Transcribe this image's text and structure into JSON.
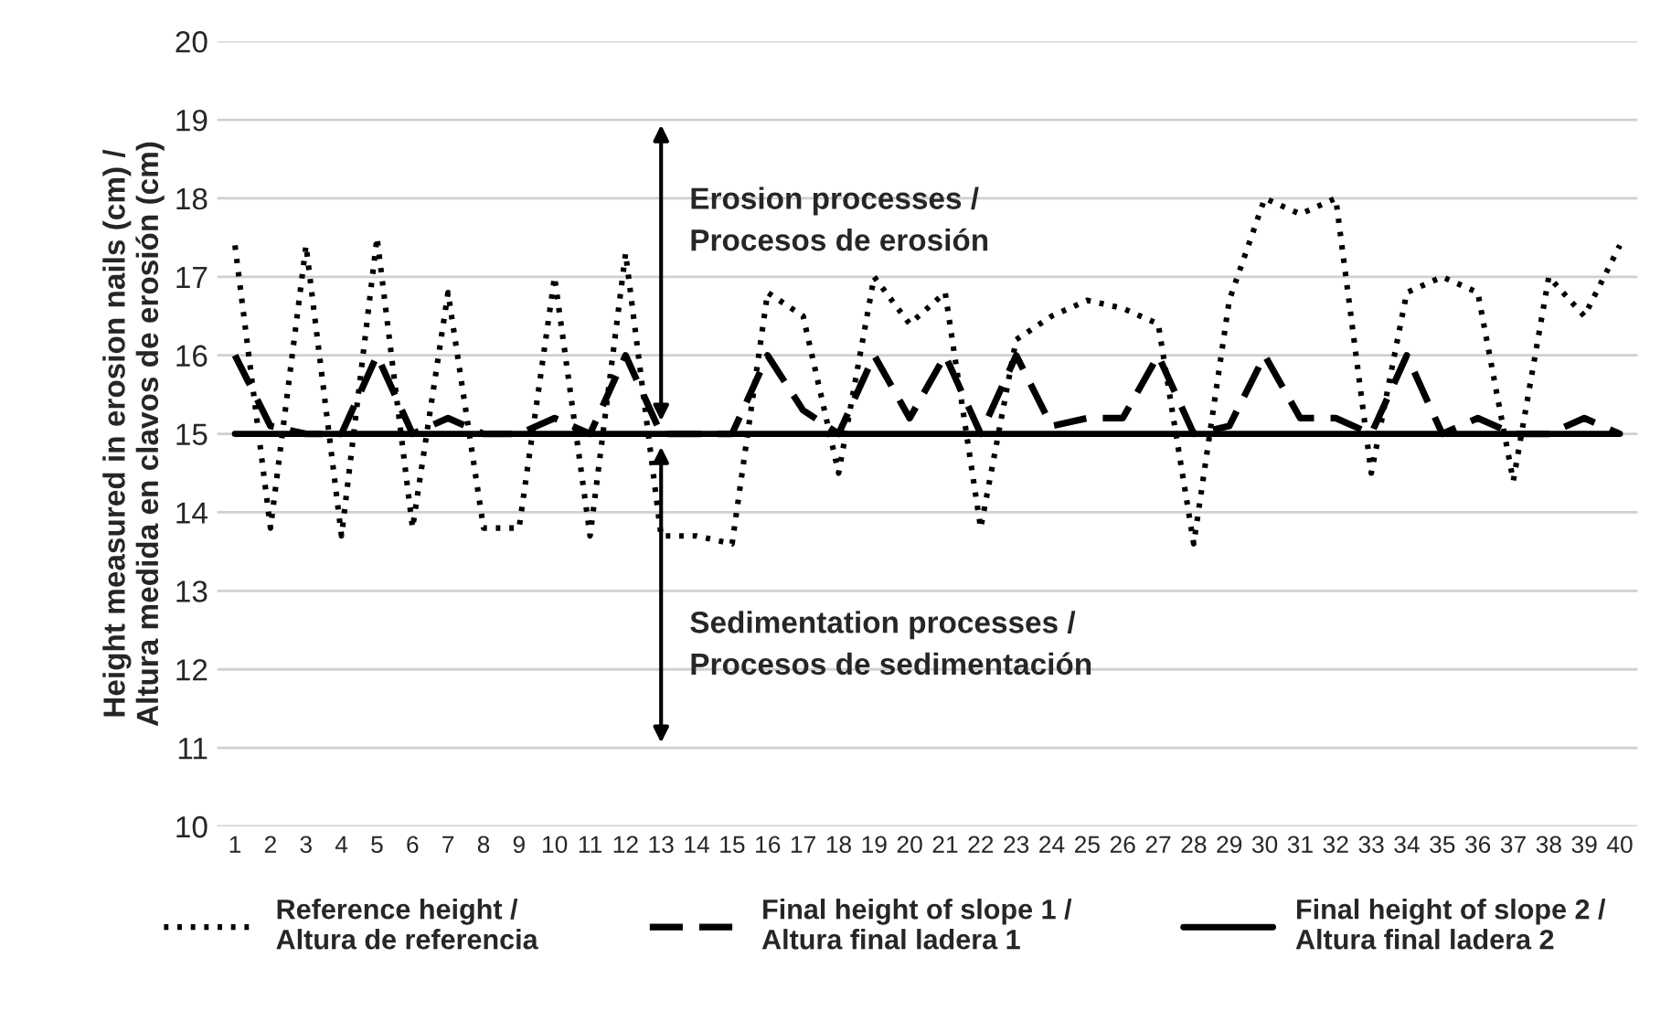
{
  "chart_data": {
    "type": "line",
    "ylabel": "Height measured in erosion nails (cm) /\nAltura medida en clavos de erosión (cm)",
    "categories": [
      "1",
      "2",
      "3",
      "4",
      "5",
      "6",
      "7",
      "8",
      "9",
      "10",
      "11",
      "12",
      "13",
      "14",
      "15",
      "16",
      "17",
      "18",
      "19",
      "20",
      "21",
      "22",
      "23",
      "24",
      "25",
      "26",
      "27",
      "28",
      "29",
      "30",
      "31",
      "32",
      "33",
      "34",
      "35",
      "36",
      "37",
      "38",
      "39",
      "40"
    ],
    "series": [
      {
        "name": "Reference height /\nAltura de referencia",
        "color": "#000000",
        "line_style": "dotted",
        "values": [
          17.4,
          13.8,
          17.4,
          13.7,
          17.5,
          13.8,
          16.8,
          13.8,
          13.8,
          17.0,
          13.7,
          17.3,
          13.7,
          13.7,
          13.6,
          16.8,
          16.5,
          14.5,
          17.0,
          16.4,
          16.8,
          13.8,
          16.2,
          16.5,
          16.7,
          16.6,
          16.4,
          13.6,
          16.7,
          18.0,
          17.8,
          18.0,
          14.5,
          16.8,
          17.0,
          16.8,
          14.4,
          17.0,
          16.5,
          17.4
        ]
      },
      {
        "name": "Final height of slope 1 /\nAltura final ladera 1",
        "color": "#000000",
        "line_style": "dashed",
        "values": [
          16.0,
          15.1,
          15.0,
          15.0,
          16.0,
          15.0,
          15.2,
          15.0,
          15.0,
          15.2,
          15.0,
          16.0,
          15.0,
          15.0,
          15.0,
          16.0,
          15.3,
          15.0,
          16.0,
          15.2,
          16.0,
          15.0,
          16.0,
          15.1,
          15.2,
          15.2,
          16.0,
          15.0,
          15.1,
          16.0,
          15.2,
          15.2,
          15.0,
          16.0,
          15.0,
          15.2,
          15.0,
          15.0,
          15.2,
          15.0
        ]
      },
      {
        "name": "Final height of slope 2 /\nAltura final ladera 2",
        "color": "#000000",
        "line_style": "solid",
        "values": [
          15,
          15,
          15,
          15,
          15,
          15,
          15,
          15,
          15,
          15,
          15,
          15,
          15,
          15,
          15,
          15,
          15,
          15,
          15,
          15,
          15,
          15,
          15,
          15,
          15,
          15,
          15,
          15,
          15,
          15,
          15,
          15,
          15,
          15,
          15,
          15,
          15,
          15,
          15,
          15
        ]
      }
    ],
    "annotations": [
      "Erosion processes /\nProcesos de erosión",
      "Sedimentation processes /\nProcesos de sedimentación"
    ],
    "ylim": [
      10,
      20
    ],
    "yticks": [
      10,
      11,
      12,
      13,
      14,
      15,
      16,
      17,
      18,
      19,
      20
    ],
    "grid": "y",
    "legend": "bottom"
  }
}
